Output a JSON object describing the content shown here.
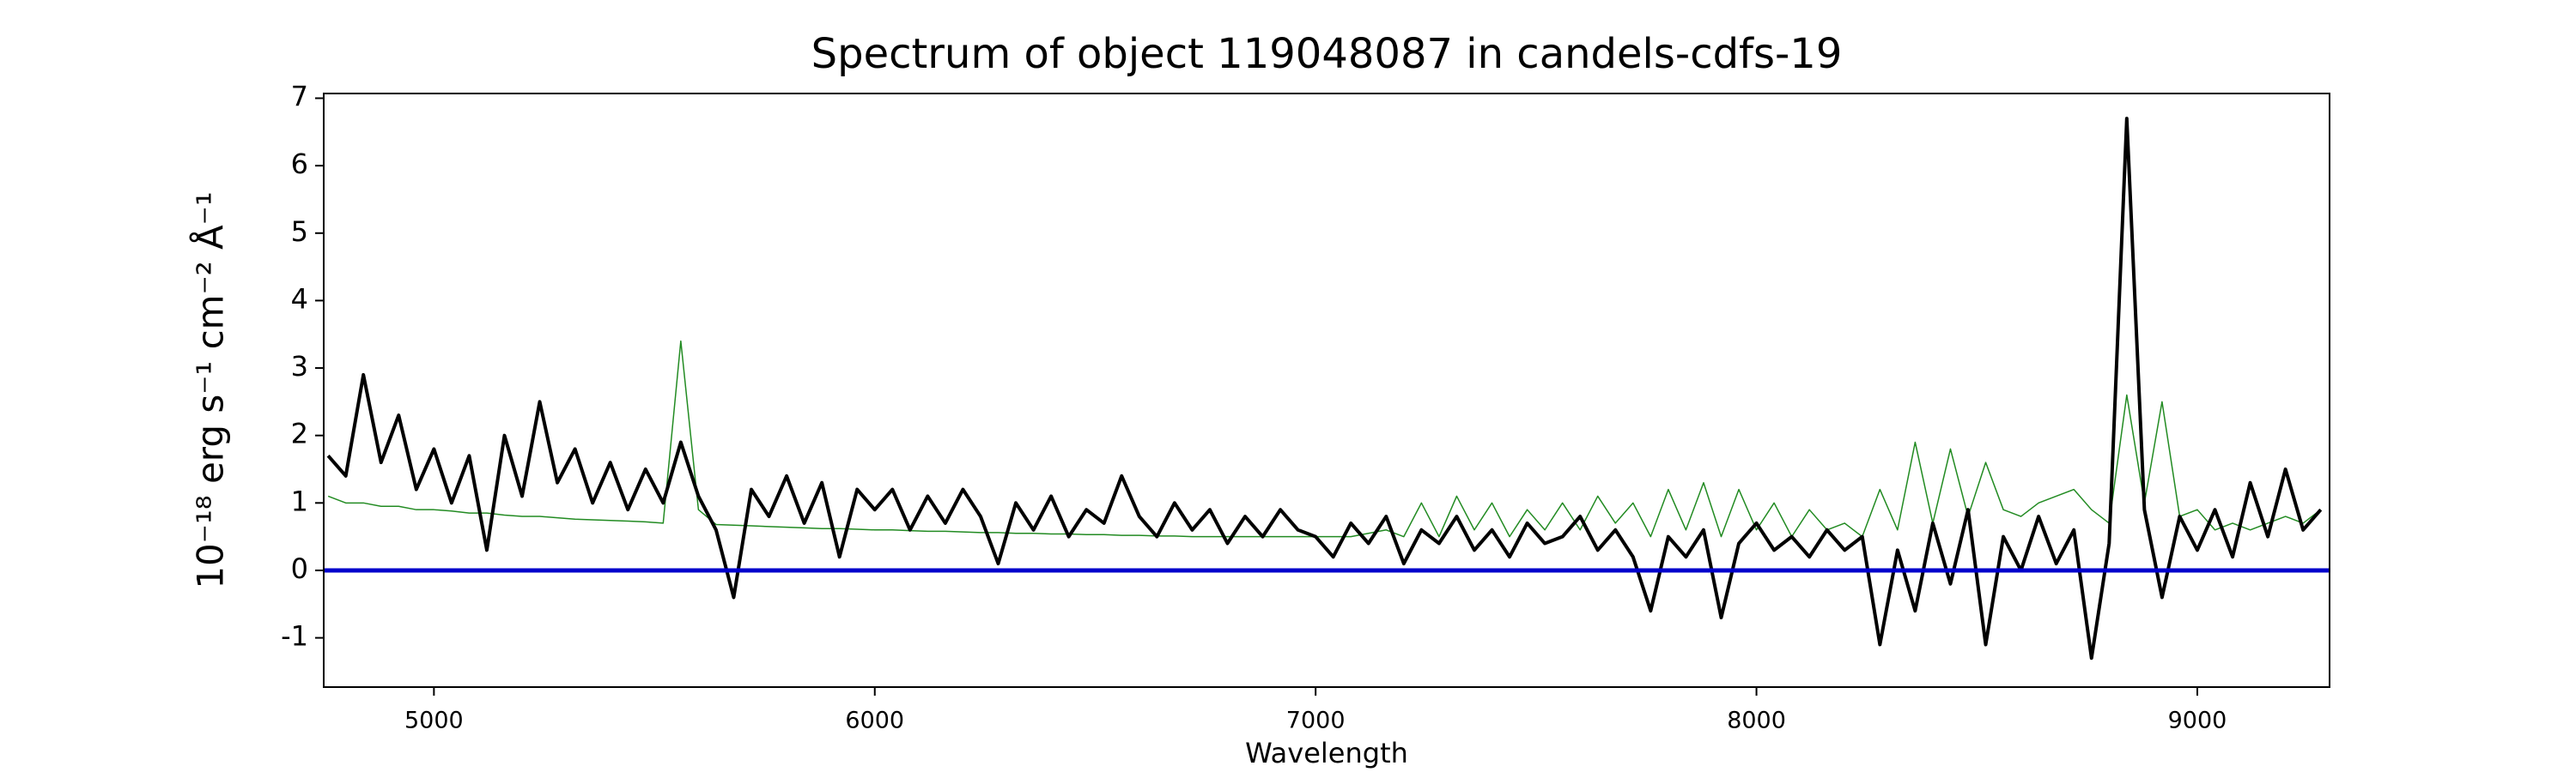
{
  "chart_data": {
    "type": "line",
    "title": "Spectrum of object 119048087 in candels-cdfs-19",
    "xlabel": "Wavelength",
    "ylabel": "10⁻¹⁸ erg s⁻¹ cm⁻² Å⁻¹",
    "x": [
      4760,
      4800,
      4840,
      4880,
      4920,
      4960,
      5000,
      5040,
      5080,
      5120,
      5160,
      5200,
      5240,
      5280,
      5320,
      5360,
      5400,
      5440,
      5480,
      5520,
      5560,
      5600,
      5640,
      5680,
      5720,
      5760,
      5800,
      5840,
      5880,
      5920,
      5960,
      6000,
      6040,
      6080,
      6120,
      6160,
      6200,
      6240,
      6280,
      6320,
      6360,
      6400,
      6440,
      6480,
      6520,
      6560,
      6600,
      6640,
      6680,
      6720,
      6760,
      6800,
      6840,
      6880,
      6920,
      6960,
      7000,
      7040,
      7080,
      7120,
      7160,
      7200,
      7240,
      7280,
      7320,
      7360,
      7400,
      7440,
      7480,
      7520,
      7560,
      7600,
      7640,
      7680,
      7720,
      7760,
      7800,
      7840,
      7880,
      7920,
      7960,
      8000,
      8040,
      8080,
      8120,
      8160,
      8200,
      8240,
      8280,
      8320,
      8360,
      8400,
      8440,
      8480,
      8520,
      8560,
      8600,
      8640,
      8680,
      8720,
      8760,
      8800,
      8840,
      8880,
      8920,
      8960,
      9000,
      9040,
      9080,
      9120,
      9160,
      9200,
      9240,
      9280
    ],
    "series": [
      {
        "color": "#228b22",
        "width": 1.5,
        "values": [
          1.1,
          1.0,
          1.0,
          0.95,
          0.95,
          0.9,
          0.9,
          0.88,
          0.85,
          0.85,
          0.82,
          0.8,
          0.8,
          0.78,
          0.76,
          0.75,
          0.74,
          0.73,
          0.72,
          0.7,
          3.4,
          0.9,
          0.68,
          0.67,
          0.66,
          0.65,
          0.64,
          0.63,
          0.62,
          0.62,
          0.61,
          0.6,
          0.6,
          0.59,
          0.58,
          0.58,
          0.57,
          0.56,
          0.56,
          0.55,
          0.55,
          0.54,
          0.54,
          0.53,
          0.53,
          0.52,
          0.52,
          0.51,
          0.51,
          0.5,
          0.5,
          0.5,
          0.5,
          0.5,
          0.5,
          0.5,
          0.5,
          0.5,
          0.5,
          0.55,
          0.6,
          0.5,
          1.0,
          0.5,
          1.1,
          0.6,
          1.0,
          0.5,
          0.9,
          0.6,
          1.0,
          0.6,
          1.1,
          0.7,
          1.0,
          0.5,
          1.2,
          0.6,
          1.3,
          0.5,
          1.2,
          0.6,
          1.0,
          0.5,
          0.9,
          0.6,
          0.7,
          0.5,
          1.2,
          0.6,
          1.9,
          0.7,
          1.8,
          0.8,
          1.6,
          0.9,
          0.8,
          1.0,
          1.1,
          1.2,
          0.9,
          0.7,
          2.6,
          1.0,
          2.5,
          0.8,
          0.9,
          0.6,
          0.7,
          0.6,
          0.7,
          0.8,
          0.7,
          0.9
        ]
      },
      {
        "color": "#000000",
        "width": 4,
        "values": [
          1.7,
          1.4,
          2.9,
          1.6,
          2.3,
          1.2,
          1.8,
          1.0,
          1.7,
          0.3,
          2.0,
          1.1,
          2.5,
          1.3,
          1.8,
          1.0,
          1.6,
          0.9,
          1.5,
          1.0,
          1.9,
          1.1,
          0.6,
          -0.4,
          1.2,
          0.8,
          1.4,
          0.7,
          1.3,
          0.2,
          1.2,
          0.9,
          1.2,
          0.6,
          1.1,
          0.7,
          1.2,
          0.8,
          0.1,
          1.0,
          0.6,
          1.1,
          0.5,
          0.9,
          0.7,
          1.4,
          0.8,
          0.5,
          1.0,
          0.6,
          0.9,
          0.4,
          0.8,
          0.5,
          0.9,
          0.6,
          0.5,
          0.2,
          0.7,
          0.4,
          0.8,
          0.1,
          0.6,
          0.4,
          0.8,
          0.3,
          0.6,
          0.2,
          0.7,
          0.4,
          0.5,
          0.8,
          0.3,
          0.6,
          0.2,
          -0.6,
          0.5,
          0.2,
          0.6,
          -0.7,
          0.4,
          0.7,
          0.3,
          0.5,
          0.2,
          0.6,
          0.3,
          0.5,
          -1.1,
          0.3,
          -0.6,
          0.7,
          -0.2,
          0.9,
          -1.1,
          0.5,
          0.0,
          0.8,
          0.1,
          0.6,
          -1.3,
          0.4,
          6.7,
          0.9,
          -0.4,
          0.8,
          0.3,
          0.9,
          0.2,
          1.3,
          0.5,
          1.5,
          0.6,
          0.9
        ]
      }
    ],
    "hlines": [
      {
        "value": 0,
        "color": "#0000cc"
      }
    ],
    "xlim": [
      4750,
      9300
    ],
    "ylim": [
      -1.73,
      7.07
    ],
    "xticks": [
      5000,
      6000,
      7000,
      8000,
      9000
    ],
    "yticks": [
      -1,
      0,
      1,
      2,
      3,
      4,
      5,
      6,
      7
    ],
    "grid": false
  }
}
